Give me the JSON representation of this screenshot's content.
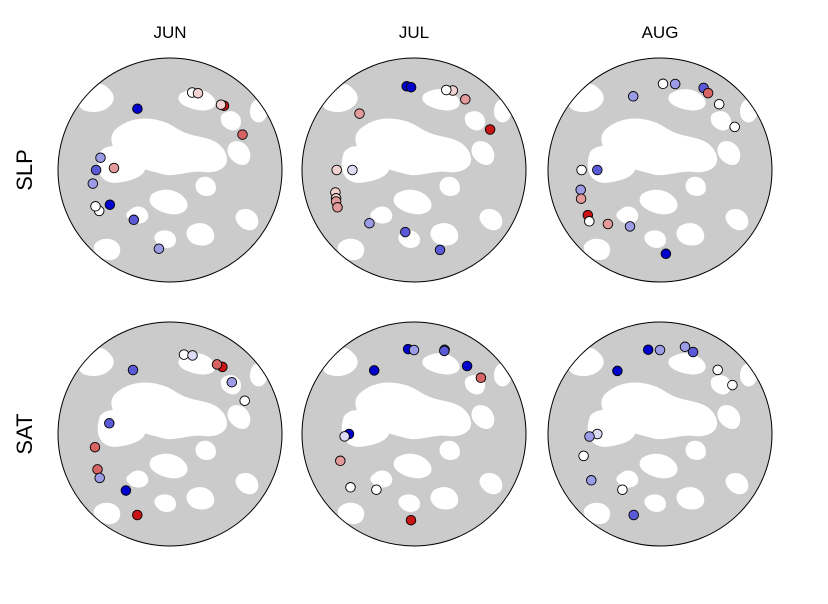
{
  "columns": [
    "JUN",
    "JUL",
    "AUG"
  ],
  "rows": [
    "SLP",
    "SAT"
  ],
  "colors": {
    "land": "#cbcbcb",
    "ocean": "#ffffff",
    "outline": "#000000",
    "strong_blue": "#0000cc",
    "mid_blue": "#5a5ad6",
    "light_blue": "#9b9be6",
    "pale_blue": "#dcdcf5",
    "neutral": "#ffffff",
    "pale_red": "#f3d2d2",
    "light_red": "#e39a9a",
    "mid_red": "#d66464",
    "strong_red": "#c81414"
  },
  "stations": [
    {
      "panel": "SLP-JUN",
      "points": [
        {
          "r": 0.62,
          "c": "strong_blue"
        },
        {
          "r": 0.72,
          "c": "neutral"
        },
        {
          "r": 0.73,
          "c": "pale_red"
        },
        {
          "r": 0.75,
          "c": "strong_red"
        },
        {
          "r": 0.74,
          "c": "pale_red"
        },
        {
          "r": 0.72,
          "c": "mid_red"
        },
        {
          "r": 0.5,
          "c": "light_red"
        },
        {
          "r": 0.63,
          "c": "light_blue"
        },
        {
          "r": 0.66,
          "c": "mid_blue"
        },
        {
          "r": 0.7,
          "c": "light_blue"
        },
        {
          "r": 0.73,
          "c": "neutral"
        },
        {
          "r": 0.74,
          "c": "neutral"
        },
        {
          "r": 0.62,
          "c": "strong_blue"
        },
        {
          "r": 0.55,
          "c": "mid_blue"
        },
        {
          "r": 0.71,
          "c": "light_blue"
        }
      ]
    },
    {
      "panel": "SLP-JUL",
      "points": [
        {
          "r": 0.7,
          "c": "light_red"
        },
        {
          "r": 0.75,
          "c": "strong_blue"
        },
        {
          "r": 0.74,
          "c": "strong_blue"
        },
        {
          "r": 0.79,
          "c": "pale_red"
        },
        {
          "r": 0.77,
          "c": "neutral"
        },
        {
          "r": 0.78,
          "c": "light_red"
        },
        {
          "r": 0.77,
          "c": "strong_red"
        },
        {
          "r": 0.55,
          "c": "pale_blue"
        },
        {
          "r": 0.69,
          "c": "pale_red"
        },
        {
          "r": 0.73,
          "c": "pale_red"
        },
        {
          "r": 0.74,
          "c": "pale_red"
        },
        {
          "r": 0.75,
          "c": "light_red"
        },
        {
          "r": 0.76,
          "c": "light_red"
        },
        {
          "r": 0.62,
          "c": "light_blue"
        },
        {
          "r": 0.56,
          "c": "mid_blue"
        },
        {
          "r": 0.75,
          "c": "mid_blue"
        }
      ]
    },
    {
      "panel": "SLP-AUG",
      "points": [
        {
          "r": 0.7,
          "c": "light_blue"
        },
        {
          "r": 0.77,
          "c": "neutral"
        },
        {
          "r": 0.78,
          "c": "light_blue"
        },
        {
          "r": 0.83,
          "c": "mid_blue"
        },
        {
          "r": 0.81,
          "c": "mid_red"
        },
        {
          "r": 0.79,
          "c": "neutral"
        },
        {
          "r": 0.77,
          "c": "neutral"
        },
        {
          "r": 0.56,
          "c": "mid_blue"
        },
        {
          "r": 0.7,
          "c": "neutral"
        },
        {
          "r": 0.73,
          "c": "light_blue"
        },
        {
          "r": 0.75,
          "c": "light_red"
        },
        {
          "r": 0.76,
          "c": "strong_red"
        },
        {
          "r": 0.78,
          "c": "neutral"
        },
        {
          "r": 0.67,
          "c": "light_red"
        },
        {
          "r": 0.57,
          "c": "light_blue"
        },
        {
          "r": 0.75,
          "c": "strong_blue"
        }
      ]
    },
    {
      "panel": "SAT-JUN",
      "points": [
        {
          "r": 0.66,
          "c": "mid_blue"
        },
        {
          "r": 0.72,
          "c": "neutral"
        },
        {
          "r": 0.73,
          "c": "pale_blue"
        },
        {
          "r": 0.76,
          "c": "strong_red"
        },
        {
          "r": 0.75,
          "c": "mid_red"
        },
        {
          "r": 0.72,
          "c": "light_blue"
        },
        {
          "r": 0.73,
          "c": "neutral"
        },
        {
          "r": 0.55,
          "c": "mid_blue"
        },
        {
          "r": 0.68,
          "c": "mid_red"
        },
        {
          "r": 0.72,
          "c": "mid_red"
        },
        {
          "r": 0.74,
          "c": "light_blue"
        },
        {
          "r": 0.64,
          "c": "strong_blue"
        },
        {
          "r": 0.78,
          "c": "strong_red"
        }
      ]
    },
    {
      "panel": "SAT-JUL",
      "points": [
        {
          "r": 0.67,
          "c": "strong_blue"
        },
        {
          "r": 0.76,
          "c": "strong_blue"
        },
        {
          "r": 0.75,
          "c": "light_blue"
        },
        {
          "r": 0.8,
          "c": "light_blue"
        },
        {
          "r": 0.79,
          "c": "mid_blue"
        },
        {
          "r": 0.77,
          "c": "strong_blue"
        },
        {
          "r": 0.78,
          "c": "mid_red"
        },
        {
          "r": 0.58,
          "c": "strong_blue"
        },
        {
          "r": 0.62,
          "c": "pale_blue"
        },
        {
          "r": 0.7,
          "c": "light_red"
        },
        {
          "r": 0.74,
          "c": "neutral"
        },
        {
          "r": 0.6,
          "c": "neutral"
        },
        {
          "r": 0.77,
          "c": "strong_red"
        }
      ]
    },
    {
      "panel": "SAT-AUG",
      "points": [
        {
          "r": 0.68,
          "c": "strong_blue"
        },
        {
          "r": 0.76,
          "c": "strong_blue"
        },
        {
          "r": 0.75,
          "c": "light_blue"
        },
        {
          "r": 0.81,
          "c": "light_blue"
        },
        {
          "r": 0.79,
          "c": "mid_blue"
        },
        {
          "r": 0.77,
          "c": "neutral"
        },
        {
          "r": 0.78,
          "c": "neutral"
        },
        {
          "r": 0.56,
          "c": "pale_blue"
        },
        {
          "r": 0.63,
          "c": "light_blue"
        },
        {
          "r": 0.71,
          "c": "neutral"
        },
        {
          "r": 0.74,
          "c": "light_blue"
        },
        {
          "r": 0.6,
          "c": "neutral"
        },
        {
          "r": 0.76,
          "c": "mid_blue"
        }
      ]
    }
  ]
}
